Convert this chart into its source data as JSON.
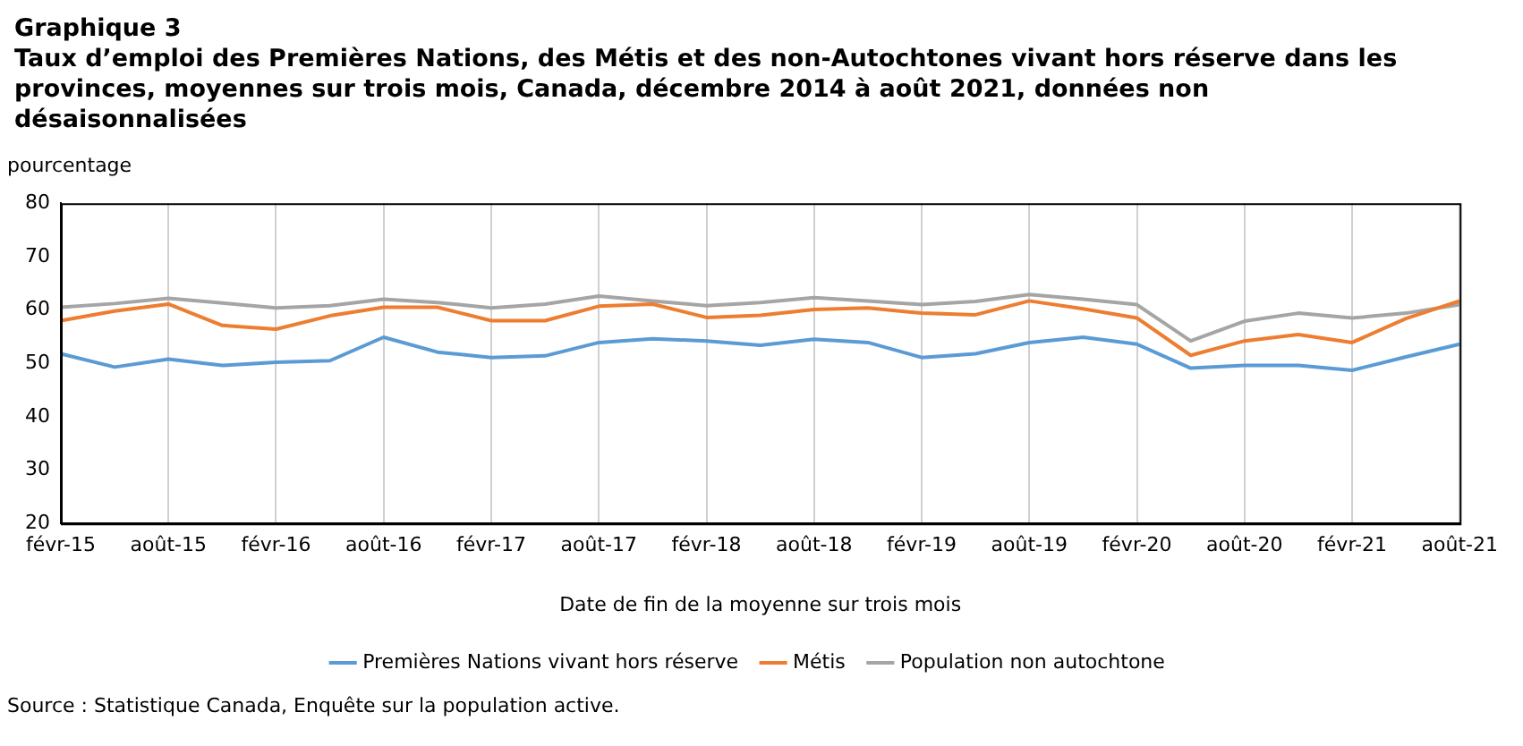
{
  "chart_data": {
    "type": "line",
    "title": "Graphique 3",
    "subtitle": "Taux d’emploi des Premières Nations, des Métis et des non-Autochtones vivant hors réserve dans les provinces, moyennes sur trois mois, Canada, décembre 2014 à août 2021, données non désaisonnalisées",
    "ylabel": "pourcentage",
    "xlabel": "Date de fin de la moyenne sur trois mois",
    "annotations": [
      "Source : Statistique Canada, Enquête sur la population active."
    ],
    "categories": [
      "févr-15",
      null,
      "août-15",
      null,
      "févr-16",
      null,
      "août-16",
      null,
      "févr-17",
      null,
      "août-17",
      null,
      "févr-18",
      null,
      "août-18",
      null,
      "févr-19",
      null,
      "août-19",
      null,
      "févr-20",
      null,
      "août-20",
      null,
      "févr-21",
      null,
      "août-21"
    ],
    "series": [
      {
        "name": "Premières Nations vivant hors réserve",
        "color": "#5b9bd5",
        "values": [
          51.8,
          49.3,
          50.8,
          49.6,
          50.2,
          50.5,
          54.9,
          52.1,
          51.1,
          51.4,
          53.9,
          54.6,
          54.2,
          53.4,
          54.5,
          53.9,
          51.1,
          51.8,
          53.9,
          54.9,
          53.6,
          49.1,
          49.6,
          49.6,
          48.7,
          51.2,
          53.6
        ]
      },
      {
        "name": "Métis",
        "color": "#ed7d31",
        "values": [
          58.0,
          59.8,
          61.1,
          57.1,
          56.4,
          58.9,
          60.5,
          60.5,
          58.0,
          58.0,
          60.7,
          61.1,
          58.6,
          59.0,
          60.1,
          60.4,
          59.4,
          59.1,
          61.7,
          60.2,
          58.5,
          51.5,
          54.2,
          55.4,
          53.9,
          58.4,
          61.7
        ]
      },
      {
        "name": "Population non autochtone",
        "color": "#a5a5a5",
        "values": [
          60.5,
          61.2,
          62.2,
          61.3,
          60.4,
          60.8,
          62.0,
          61.4,
          60.4,
          61.1,
          62.6,
          61.7,
          60.8,
          61.4,
          62.3,
          61.7,
          61.0,
          61.6,
          62.9,
          62.0,
          61.0,
          54.2,
          57.9,
          59.4,
          58.5,
          59.4,
          61.0
        ]
      }
    ],
    "ylim": [
      20,
      80
    ],
    "yticks": [
      20,
      30,
      40,
      50,
      60,
      70,
      80
    ],
    "grid": "x",
    "legend": "bottom",
    "marker": "none",
    "line_style": "solid"
  }
}
